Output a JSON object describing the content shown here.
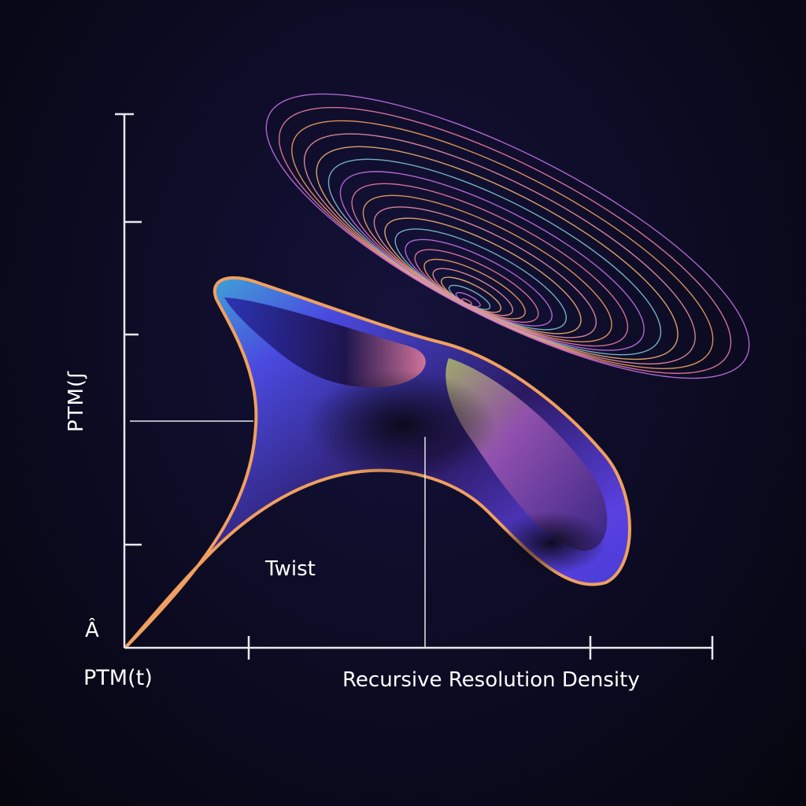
{
  "y_axis_label": "PTM(ʃ",
  "origin_label": "Â",
  "x_origin_label": "PTM(t)",
  "x_axis_label": "Recursive Resolution Density",
  "annotation": "Twist",
  "colors": {
    "background": "#0c0b22",
    "axis": "#e8e8ee",
    "rim_orange": "#f0a060",
    "surface_blue": "#4a4ae0",
    "surface_purple": "#7a3fc8"
  }
}
